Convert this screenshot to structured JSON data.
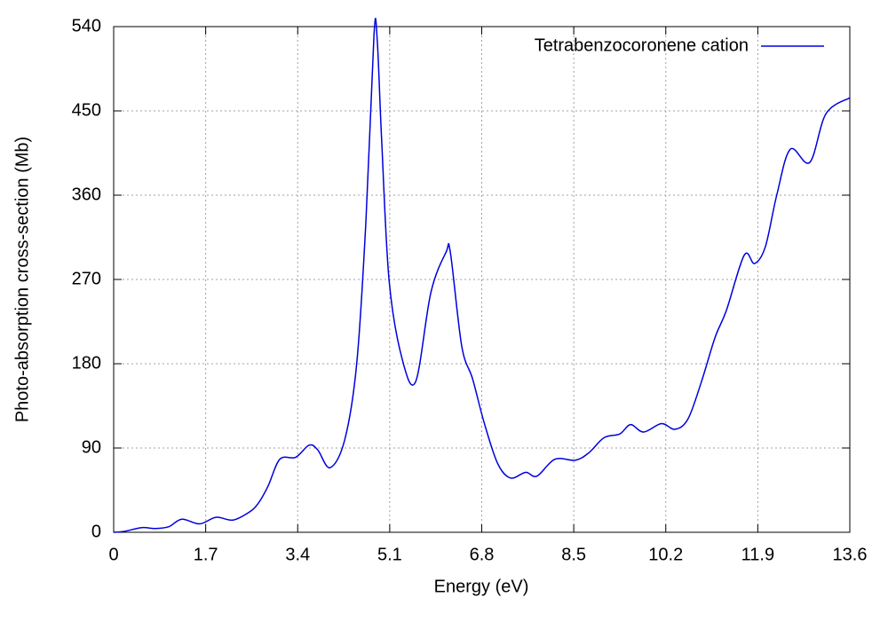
{
  "chart_data": {
    "type": "line",
    "xlabel": "Energy (eV)",
    "ylabel": "Photo-absorption cross-section (Mb)",
    "xlim": [
      0,
      13.6
    ],
    "xticks": [
      0,
      1.7,
      3.4,
      5.1,
      6.8,
      8.5,
      10.2,
      11.9,
      13.6
    ],
    "ylim": [
      0,
      540
    ],
    "yticks": [
      0,
      90,
      180,
      270,
      360,
      450,
      540
    ],
    "grid": true,
    "legend": "top-right",
    "x": [
      0,
      0.2,
      0.52,
      0.77,
      1.02,
      1.26,
      1.59,
      1.89,
      2.2,
      2.49,
      2.66,
      2.85,
      3.07,
      3.36,
      3.61,
      3.77,
      4.0,
      4.27,
      4.49,
      4.66,
      4.81,
      4.87,
      4.95,
      5.09,
      5.33,
      5.58,
      5.86,
      6.14,
      6.22,
      6.43,
      6.63,
      6.84,
      7.09,
      7.33,
      7.61,
      7.82,
      8.15,
      8.53,
      8.78,
      9.06,
      9.35,
      9.55,
      9.79,
      10.12,
      10.37,
      10.61,
      10.86,
      11.11,
      11.32,
      11.65,
      11.84,
      12.04,
      12.25,
      12.5,
      12.86,
      13.16,
      13.6
    ],
    "series": [
      {
        "name": "Tetrabenzocoronene cation",
        "color": "#0000dd",
        "values": [
          0,
          1,
          5,
          4,
          6,
          14,
          9,
          16,
          13,
          21,
          30,
          49,
          78,
          80,
          93,
          88,
          69,
          99,
          180,
          332,
          532,
          525,
          420,
          268,
          185,
          161,
          256,
          299,
          299,
          199,
          164,
          118,
          74,
          58,
          64,
          60,
          78,
          77,
          85,
          101,
          105,
          115,
          107,
          116,
          110,
          121,
          161,
          208,
          237,
          296,
          287,
          305,
          360,
          409,
          395,
          447,
          464
        ]
      }
    ]
  }
}
